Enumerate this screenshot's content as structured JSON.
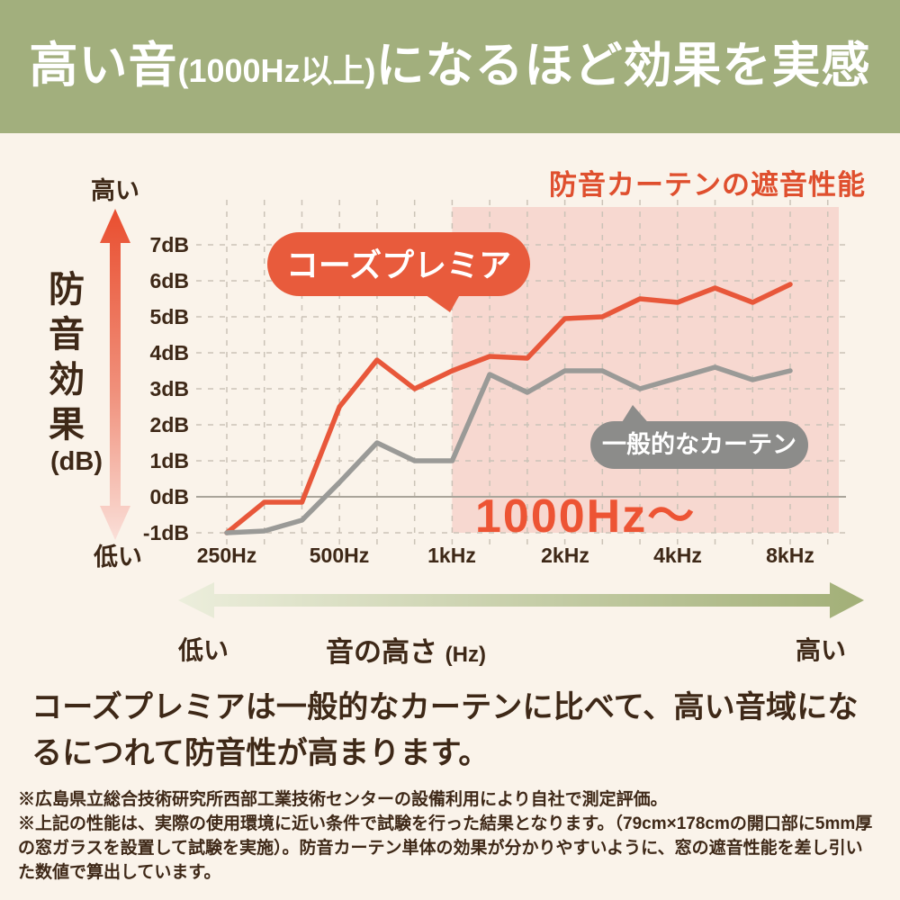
{
  "banner": {
    "prefix": "高い音",
    "paren": "(1000Hz以上)",
    "suffix": "になるほど効果を実感"
  },
  "chart": {
    "title": "防音カーテンの遮音性能",
    "y_axis": {
      "label": "防音効果",
      "unit": "(dB)",
      "high": "高い",
      "low": "低い",
      "ticks": [
        "7dB",
        "6dB",
        "5dB",
        "4dB",
        "3dB",
        "2dB",
        "1dB",
        "0dB",
        "-1dB"
      ]
    },
    "x_axis": {
      "ticks": [
        "250Hz",
        "500Hz",
        "1kHz",
        "2kHz",
        "4kHz",
        "8kHz"
      ]
    },
    "series_labels": {
      "premium": "コーズプレミア",
      "general": "一般的なカーテン"
    },
    "highlight_label": "1000Hz〜",
    "colors": {
      "accent_red": "#E8573A",
      "gray_line": "#9A9A97",
      "highlight_bg": "#F7D8D0",
      "grid": "#CBC3B7",
      "zero_line": "#A9A49A",
      "badge_red": "#E85B3C",
      "badge_gray": "#8C8C8A",
      "title_red": "#DF4F2E",
      "banner_green": "#A2AF7D",
      "text_brown": "#3E2817",
      "background": "#FAF3EA"
    }
  },
  "chart_data": {
    "type": "line",
    "x_hz": [
      250,
      315,
      400,
      500,
      630,
      800,
      1000,
      1250,
      1600,
      2000,
      2500,
      3150,
      4000,
      5000,
      6300,
      8000
    ],
    "x_tick_labels": [
      "250Hz",
      "500Hz",
      "1kHz",
      "2kHz",
      "4kHz",
      "8kHz"
    ],
    "y_ticks_db": [
      7,
      6,
      5,
      4,
      3,
      2,
      1,
      0,
      -1
    ],
    "series": [
      {
        "name": "コーズプレミア",
        "color": "#E8573A",
        "values": [
          -1.0,
          -0.15,
          -0.15,
          2.5,
          3.8,
          3.0,
          3.5,
          3.9,
          3.85,
          4.95,
          5.0,
          5.5,
          5.4,
          5.8,
          5.4,
          5.9
        ]
      },
      {
        "name": "一般的なカーテン",
        "color": "#9A9A97",
        "values": [
          -1.0,
          -0.95,
          -0.65,
          0.4,
          1.5,
          1.0,
          1.0,
          3.4,
          2.9,
          3.5,
          3.5,
          3.0,
          3.3,
          3.6,
          3.25,
          3.5
        ]
      }
    ],
    "title": "防音カーテンの遮音性能",
    "xlabel": "音の高さ (Hz)",
    "ylabel": "防音効果 (dB)",
    "ylim": [
      -1.5,
      7.8
    ],
    "x_scale": "log-octave",
    "grid": true,
    "legend_position": "speech-bubbles-on-plot",
    "highlight_region": {
      "from_hz": 1000,
      "label": "1000Hz〜"
    }
  },
  "freq_arrow": {
    "low": "低い",
    "label": "音の高さ",
    "unit": "(Hz)",
    "high": "高い"
  },
  "description": "コーズプレミアは一般的なカーテンに比べて、高い音域になるにつれて防音性が高まります。",
  "footnotes": [
    "※広島県立総合技術研究所西部工業技術センターの設備利用により自社で測定評価。",
    "※上記の性能は、実際の使用環境に近い条件で試験を行った結果となります。（79cm×178cmの開口部に5mm厚の窓ガラスを設置して試験を実施）。防音カーテン単体の効果が分かりやすいように、窓の遮音性能を差し引いた数値で算出しています。"
  ]
}
